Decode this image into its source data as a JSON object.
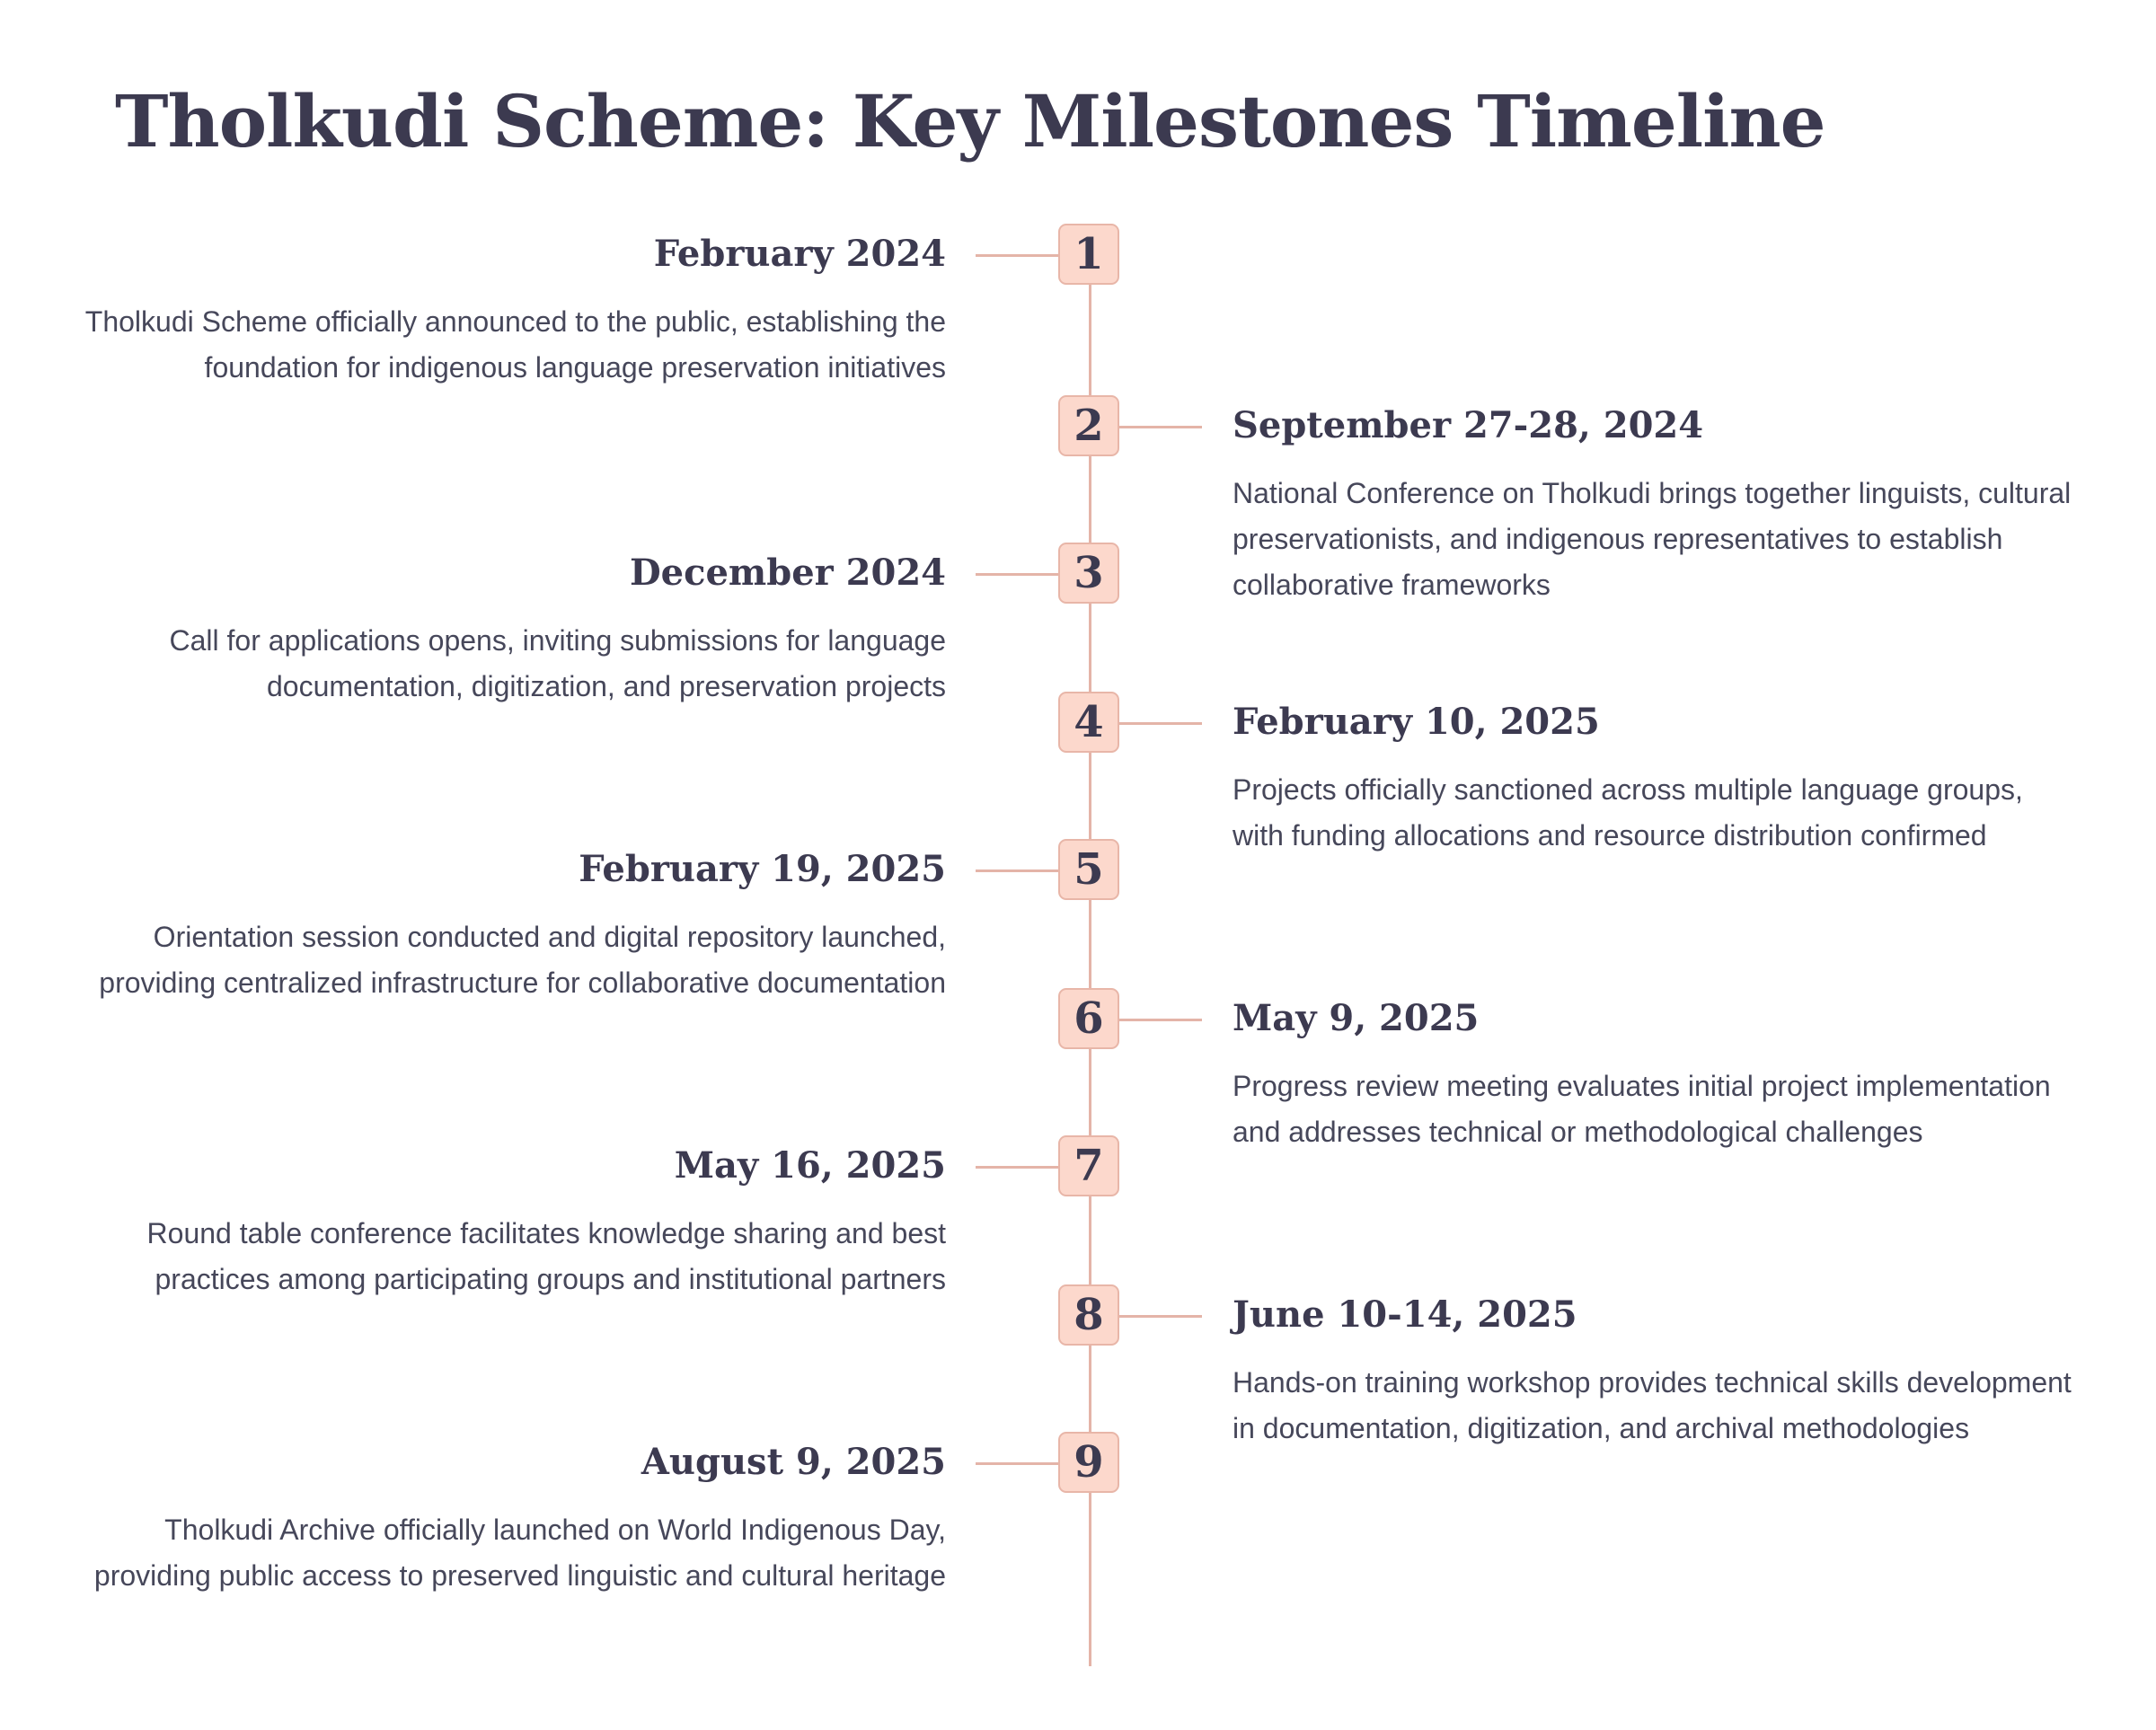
{
  "title": "Tholkudi Scheme: Key Milestones Timeline",
  "colors": {
    "text": "#3c3a50",
    "node_fill": "#fcd8cc",
    "node_border": "#e8b6a8",
    "line": "#e4b4a8"
  },
  "milestones": [
    {
      "number": "1",
      "side": "left",
      "date": "February 2024",
      "description": "Tholkudi Scheme officially announced to the public, establishing the foundation for indigenous language preservation initiatives"
    },
    {
      "number": "2",
      "side": "right",
      "date": "September 27-28, 2024",
      "description": "National Conference on Tholkudi brings together linguists, cultural preservationists, and indigenous representatives to establish collaborative frameworks"
    },
    {
      "number": "3",
      "side": "left",
      "date": "December 2024",
      "description": "Call for applications opens, inviting submissions for language documentation, digitization, and preservation projects"
    },
    {
      "number": "4",
      "side": "right",
      "date": "February 10, 2025",
      "description": "Projects officially sanctioned across multiple language groups, with funding allocations and resource distribution confirmed"
    },
    {
      "number": "5",
      "side": "left",
      "date": "February 19, 2025",
      "description": "Orientation session conducted and digital repository launched, providing centralized infrastructure for collaborative documentation"
    },
    {
      "number": "6",
      "side": "right",
      "date": "May 9, 2025",
      "description": "Progress review meeting evaluates initial project implementation and addresses technical or methodological challenges"
    },
    {
      "number": "7",
      "side": "left",
      "date": "May 16, 2025",
      "description": "Round table conference facilitates knowledge sharing and best practices among participating groups and institutional partners"
    },
    {
      "number": "8",
      "side": "right",
      "date": "June 10-14, 2025",
      "description": "Hands-on training workshop provides technical skills development in documentation, digitization, and archival methodologies"
    },
    {
      "number": "9",
      "side": "left",
      "date": "August 9, 2025",
      "description": "Tholkudi Archive officially launched on World Indigenous Day, providing public access to preserved linguistic and cultural heritage"
    }
  ]
}
